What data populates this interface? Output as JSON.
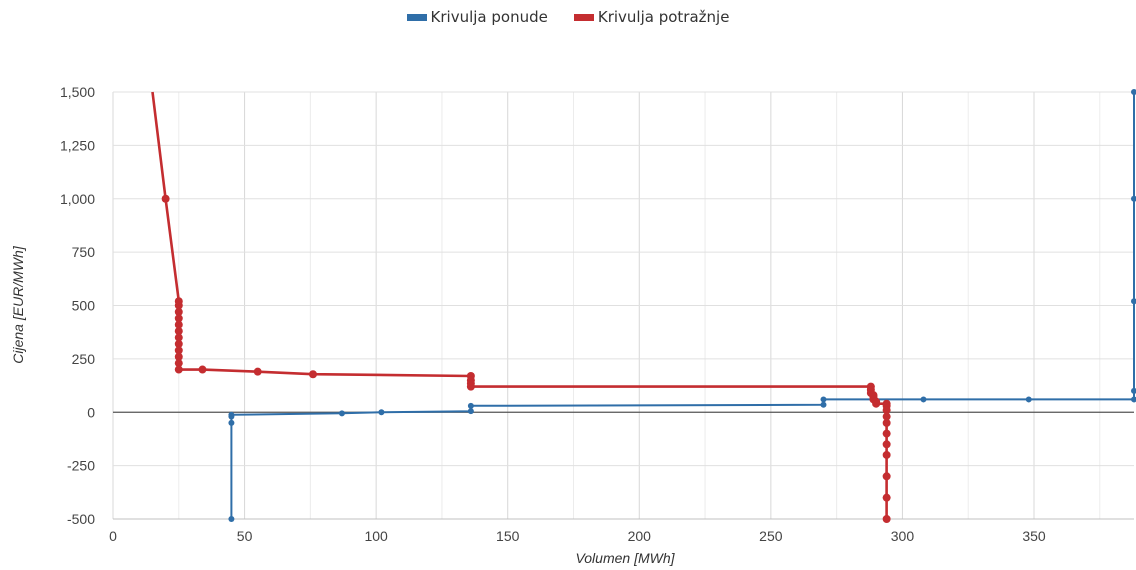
{
  "legend": [
    {
      "label": "Krivulja ponude",
      "color": "#2f6ea8"
    },
    {
      "label": "Krivulja potražnje",
      "color": "#c42d30"
    }
  ],
  "chart_data": {
    "type": "line",
    "xlabel": "Volumen [MWh]",
    "ylabel": "Cijena [EUR/MWh]",
    "xlim": [
      0,
      388
    ],
    "ylim": [
      -500,
      1500
    ],
    "x_ticks": [
      0,
      50,
      100,
      150,
      200,
      250,
      300,
      350
    ],
    "x_tick_labels": [
      "0",
      "50",
      "100",
      "150",
      "200",
      "250",
      "300",
      "350"
    ],
    "y_ticks": [
      -500,
      -250,
      0,
      250,
      500,
      750,
      1000,
      1250,
      1500
    ],
    "y_tick_labels": [
      "-500",
      "-250",
      "0",
      "250",
      "500",
      "750",
      "1,000",
      "1,250",
      "1,500"
    ],
    "grid": true,
    "legend_position": "top-center",
    "series": [
      {
        "name": "Krivulja ponude",
        "color": "#2f6ea8",
        "points": [
          [
            45,
            -500
          ],
          [
            45,
            -50
          ],
          [
            45,
            -20
          ],
          [
            45,
            -12
          ],
          [
            87,
            -5
          ],
          [
            102,
            0
          ],
          [
            136,
            5
          ],
          [
            136,
            30
          ],
          [
            270,
            35
          ],
          [
            270,
            60
          ],
          [
            308,
            60
          ],
          [
            348,
            60
          ],
          [
            388,
            60
          ],
          [
            388,
            100
          ],
          [
            388,
            520
          ],
          [
            388,
            1000
          ],
          [
            388,
            1500
          ]
        ]
      },
      {
        "name": "Krivulja potražnje",
        "color": "#c42d30",
        "points": [
          [
            15,
            1500
          ],
          [
            20,
            1000
          ],
          [
            25,
            520
          ],
          [
            25,
            500
          ],
          [
            25,
            470
          ],
          [
            25,
            440
          ],
          [
            25,
            410
          ],
          [
            25,
            380
          ],
          [
            25,
            350
          ],
          [
            25,
            320
          ],
          [
            25,
            290
          ],
          [
            25,
            260
          ],
          [
            25,
            230
          ],
          [
            25,
            200
          ],
          [
            34,
            200
          ],
          [
            55,
            190
          ],
          [
            76,
            178
          ],
          [
            136,
            170
          ],
          [
            136,
            150
          ],
          [
            136,
            135
          ],
          [
            136,
            120
          ],
          [
            288,
            120
          ],
          [
            288,
            105
          ],
          [
            288,
            90
          ],
          [
            289,
            80
          ],
          [
            289,
            70
          ],
          [
            289,
            60
          ],
          [
            290,
            50
          ],
          [
            290,
            40
          ],
          [
            294,
            40
          ],
          [
            294,
            30
          ],
          [
            294,
            10
          ],
          [
            294,
            -20
          ],
          [
            294,
            -50
          ],
          [
            294,
            -100
          ],
          [
            294,
            -150
          ],
          [
            294,
            -200
          ],
          [
            294,
            -300
          ],
          [
            294,
            -400
          ],
          [
            294,
            -500
          ]
        ]
      }
    ]
  }
}
